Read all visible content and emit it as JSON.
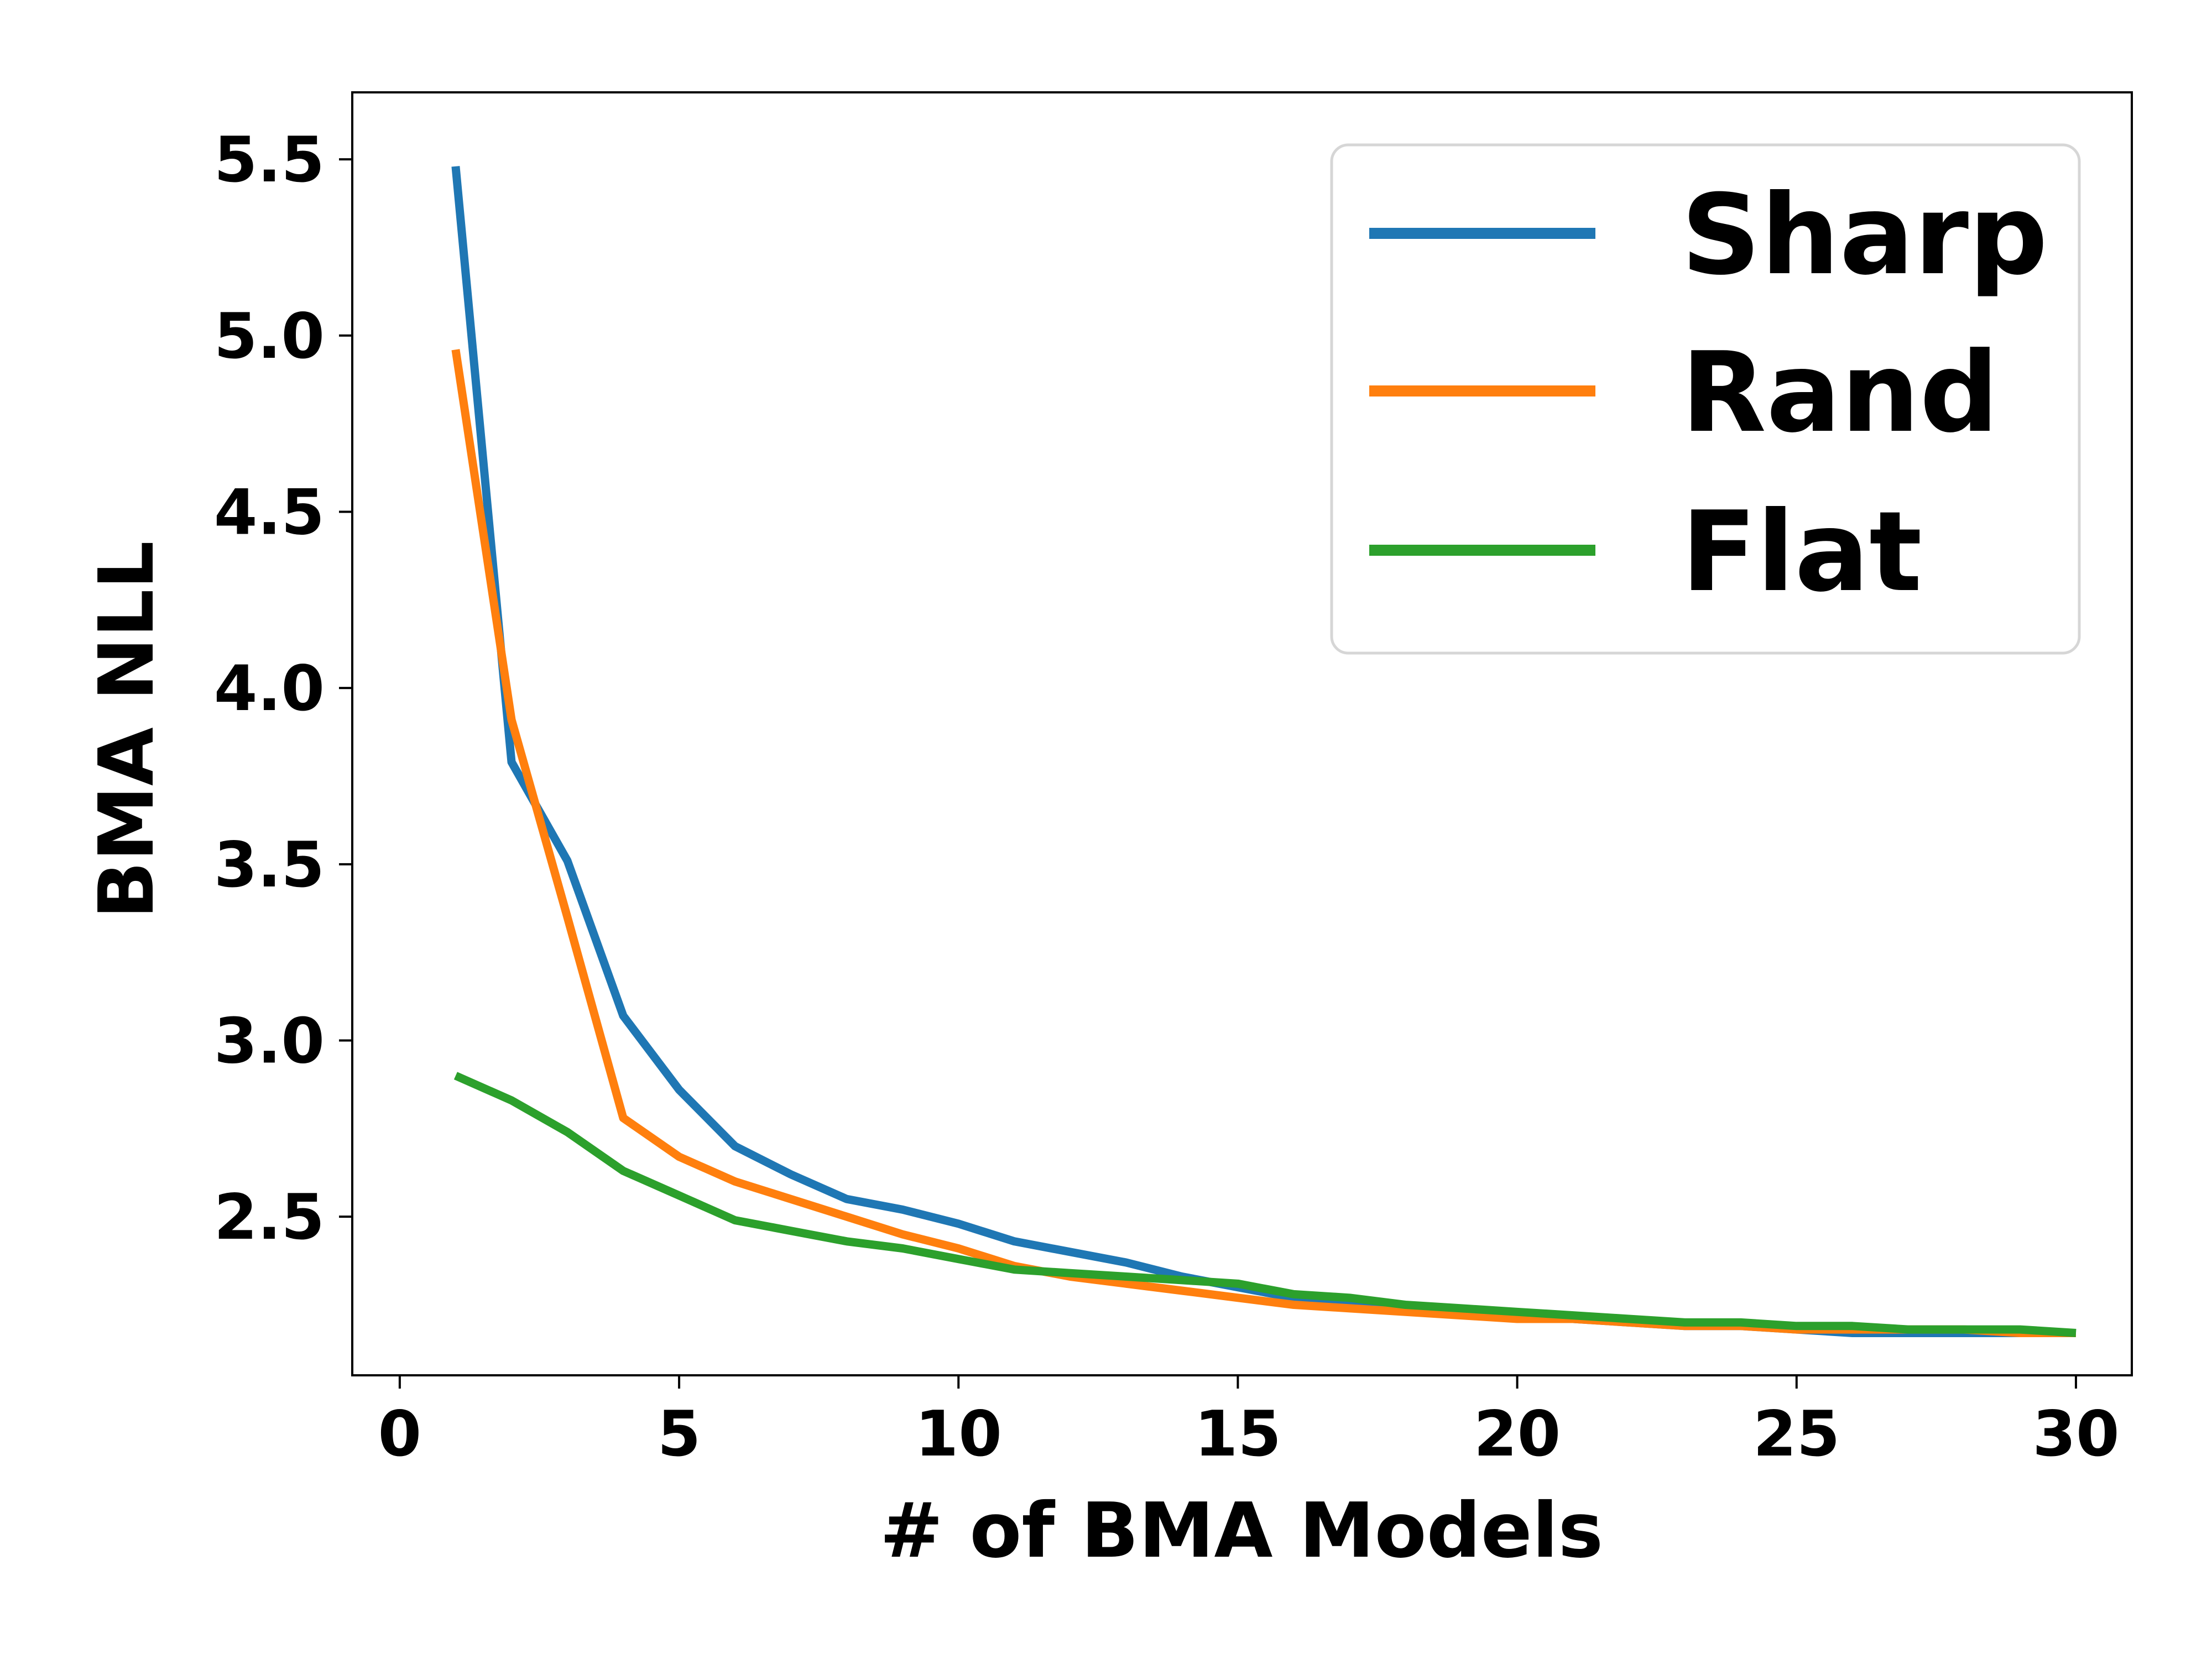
{
  "chart_data": {
    "type": "line",
    "title": "",
    "xlabel": "# of BMA Models",
    "ylabel": "BMA NLL",
    "xlim": [
      -0.85,
      31.0
    ],
    "ylim": [
      2.05,
      5.69
    ],
    "xticks": [
      0,
      5,
      10,
      15,
      20,
      25,
      30
    ],
    "yticks": [
      2.5,
      3.0,
      3.5,
      4.0,
      4.5,
      5.0,
      5.5
    ],
    "xtick_labels": [
      "0",
      "5",
      "10",
      "15",
      "20",
      "25",
      "30"
    ],
    "ytick_labels": [
      "2.5",
      "3.0",
      "3.5",
      "4.0",
      "4.5",
      "5.0",
      "5.5"
    ],
    "grid": false,
    "legend_position": "top-right",
    "x": [
      1,
      2,
      3,
      4,
      5,
      6,
      7,
      8,
      9,
      10,
      11,
      12,
      13,
      14,
      15,
      16,
      17,
      18,
      19,
      20,
      21,
      22,
      23,
      24,
      25,
      26,
      27,
      28,
      29,
      30
    ],
    "series": [
      {
        "name": "Sharp",
        "color": "#1f77b4",
        "values": [
          5.48,
          3.79,
          3.51,
          3.07,
          2.86,
          2.7,
          2.62,
          2.55,
          2.52,
          2.48,
          2.43,
          2.4,
          2.37,
          2.33,
          2.3,
          2.27,
          2.25,
          2.24,
          2.23,
          2.22,
          2.21,
          2.2,
          2.19,
          2.19,
          2.18,
          2.17,
          2.17,
          2.17,
          2.17,
          2.17
        ]
      },
      {
        "name": "Rand",
        "color": "#ff7f0e",
        "values": [
          4.96,
          3.91,
          3.35,
          2.78,
          2.67,
          2.6,
          2.55,
          2.5,
          2.45,
          2.41,
          2.36,
          2.33,
          2.31,
          2.29,
          2.27,
          2.25,
          2.24,
          2.23,
          2.22,
          2.21,
          2.21,
          2.2,
          2.19,
          2.19,
          2.18,
          2.18,
          2.18,
          2.18,
          2.17,
          2.17
        ]
      },
      {
        "name": "Flat",
        "color": "#2ca02c",
        "values": [
          2.9,
          2.83,
          2.74,
          2.63,
          2.56,
          2.49,
          2.46,
          2.43,
          2.41,
          2.38,
          2.35,
          2.34,
          2.33,
          2.32,
          2.31,
          2.28,
          2.27,
          2.25,
          2.24,
          2.23,
          2.22,
          2.21,
          2.2,
          2.2,
          2.19,
          2.19,
          2.18,
          2.18,
          2.18,
          2.17
        ]
      }
    ]
  }
}
